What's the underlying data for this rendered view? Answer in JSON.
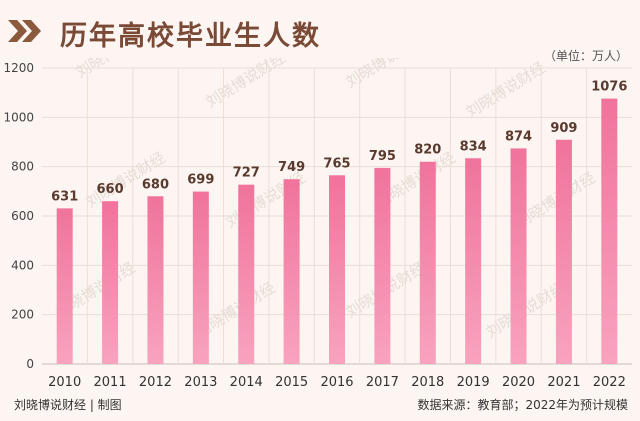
{
  "header": {
    "title": "历年高校毕业生人数",
    "unit": "（单位：万人）"
  },
  "footer": {
    "credit": "刘晓博说财经 | 制图",
    "source": "数据来源：教育部；2022年为预计规模"
  },
  "watermark": "刘晓博说财经",
  "colors": {
    "bar": "#f0739c",
    "bar_light": "#f8a3bf",
    "title": "#7a4a36",
    "chevron": "#8b5a3c",
    "background": "#fcf5f1"
  },
  "chart_data": {
    "type": "bar",
    "categories": [
      "2010",
      "2011",
      "2012",
      "2013",
      "2014",
      "2015",
      "2016",
      "2017",
      "2018",
      "2019",
      "2020",
      "2021",
      "2022"
    ],
    "values": [
      631,
      660,
      680,
      699,
      727,
      749,
      765,
      795,
      820,
      834,
      874,
      909,
      1076
    ],
    "ylim": [
      0,
      1200
    ],
    "yticks": [
      0,
      200,
      400,
      600,
      800,
      1000,
      1200
    ],
    "grid": true,
    "data_labels": true
  }
}
